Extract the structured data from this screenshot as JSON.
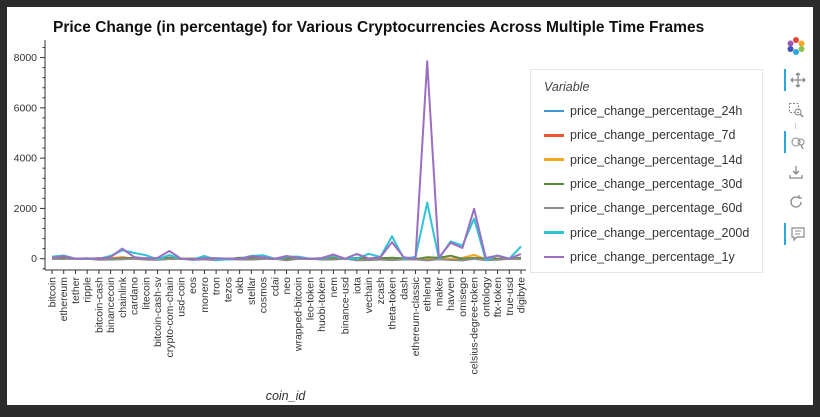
{
  "chart_data": {
    "type": "line",
    "title": "Price Change (in percentage) for Various Cryptocurrencies Across Multiple Time Frames",
    "xlabel": "coin_id",
    "ylabel": "",
    "ylim": [
      -450,
      8700
    ],
    "yticks": [
      0,
      2000,
      4000,
      6000,
      8000
    ],
    "grid": false,
    "legend_title": "Variable",
    "legend_position": "right",
    "categories": [
      "bitcoin",
      "ethereum",
      "tether",
      "ripple",
      "bitcoin-cash",
      "binancecoin",
      "chainlink",
      "cardano",
      "litecoin",
      "bitcoin-cash-sv",
      "crypto-com-chain",
      "usd-coin",
      "eos",
      "monero",
      "tron",
      "tezos",
      "okb",
      "stellar",
      "cosmos",
      "cdai",
      "neo",
      "wrapped-bitcoin",
      "leo-token",
      "huobi-token",
      "nem",
      "binance-usd",
      "iota",
      "vechain",
      "zcash",
      "theta-token",
      "dash",
      "ethereum-classic",
      "ethlend",
      "maker",
      "havven",
      "omisego",
      "celsius-degree-token",
      "ontology",
      "ftx-token",
      "true-usd",
      "digibyte"
    ],
    "series": [
      {
        "name": "price_change_percentage_24h",
        "color": "#3a9ad9",
        "values": [
          1.1,
          0.8,
          0,
          -0.2,
          2.2,
          2.6,
          4.5,
          -0.2,
          1.5,
          -0.1,
          1.5,
          0,
          1.0,
          1.3,
          -0.5,
          0,
          0.8,
          -2.7,
          1.5,
          0,
          0.6,
          1.5,
          0,
          0.8,
          3.1,
          -0.1,
          0.7,
          0,
          2.4,
          -0.1,
          -0.3,
          -1.1,
          -0.3,
          -0.1,
          0.7,
          1.0,
          1.4,
          1.1,
          -0.3,
          0,
          2.8
        ]
      },
      {
        "name": "price_change_percentage_7d",
        "color": "#ee5533",
        "values": [
          7.5,
          12.4,
          0,
          -5,
          24.3,
          13.8,
          52,
          7.6,
          12,
          6.4,
          36.3,
          0,
          -6,
          13.8,
          7.2,
          1.3,
          17.4,
          2,
          12,
          0,
          -0.6,
          5.9,
          0,
          0.3,
          17.8,
          -0.1,
          -6,
          3.7,
          17.4,
          6.5,
          15.7,
          7.3,
          1.4,
          7.3,
          -4.7,
          -18.9,
          18.8,
          10,
          4.1,
          0,
          4.8
        ]
      },
      {
        "name": "price_change_percentage_14d",
        "color": "#f5a623",
        "values": [
          6.6,
          19.2,
          0,
          -3.3,
          -9.9,
          5.1,
          22.1,
          -1.8,
          9.4,
          -3.1,
          3.4,
          0,
          -2,
          8,
          -2.7,
          5.2,
          6.3,
          -3.3,
          22.3,
          0,
          5.8,
          7.7,
          0,
          4.6,
          40.8,
          0,
          4.1,
          0.4,
          36.6,
          17.3,
          -5.2,
          -6.5,
          24.5,
          -12.2,
          -0.1,
          31.4,
          149,
          -21.5,
          7.8,
          0,
          -5.1
        ]
      },
      {
        "name": "price_change_percentage_30d",
        "color": "#5a8a3c",
        "values": [
          7.5,
          33.3,
          0,
          3.3,
          -4,
          -16.9,
          17.5,
          26.6,
          18,
          -22,
          34.2,
          0,
          -2.9,
          19.2,
          20,
          -15,
          37,
          29.6,
          3.6,
          0,
          15.9,
          7.9,
          0,
          2.1,
          21.8,
          0,
          29.4,
          4.9,
          12.6,
          40.7,
          8.2,
          -19.7,
          59.3,
          40.1,
          119.3,
          -3.7,
          31.4,
          -4.9,
          1.1,
          0,
          35.9
        ]
      },
      {
        "name": "price_change_percentage_60d",
        "color": "#8c8c8c",
        "values": [
          -8.7,
          -12.8,
          0,
          -3.8,
          -42.3,
          -34.9,
          -20.4,
          -5.1,
          -35.9,
          -48.3,
          -12.3,
          0,
          -49.8,
          -26.5,
          -62.8,
          -20.6,
          -33.3,
          -37.9,
          -11.2,
          0,
          -60.6,
          -9.6,
          -0.3,
          -35.1,
          -32.8,
          0,
          -61.4,
          -54.6,
          -38.1,
          -57.4,
          -34.1,
          -27.1,
          -69,
          -20.1,
          -50.5,
          -67,
          -6.7,
          -54.3,
          -38.4,
          -0.1,
          -17.3
        ]
      },
      {
        "name": "price_change_percentage_200d",
        "color": "#2ec4d6",
        "values": [
          84.3,
          127.5,
          0,
          -5.4,
          1,
          110,
          335.5,
          232,
          137.3,
          -23.9,
          141,
          0,
          -33,
          112,
          -42,
          -26.4,
          1.2,
          109,
          137,
          0,
          70.6,
          83.6,
          0,
          13.3,
          119.6,
          0,
          5.6,
          196,
          68,
          896,
          0,
          71,
          2229,
          2.6,
          689,
          522,
          1589,
          -59.8,
          127,
          0,
          483
        ]
      },
      {
        "name": "price_change_percentage_1y",
        "color": "#9b6ec2",
        "values": [
          37.5,
          101.2,
          0,
          15,
          0.7,
          63.8,
          401.1,
          65,
          11.3,
          28.8,
          306,
          0,
          -34,
          18,
          18,
          8,
          -13,
          96,
          59,
          -2,
          105,
          36.3,
          -9,
          29,
          168,
          0,
          192,
          11.7,
          53,
          654,
          59,
          -1,
          7852.1,
          43,
          638,
          427,
          1983,
          29,
          124,
          0,
          187
        ]
      }
    ]
  },
  "toolbar": {
    "icons": [
      "bokeh-logo-icon",
      "pan-icon",
      "box-zoom-icon",
      "wheel-zoom-icon",
      "save-icon",
      "reset-icon",
      "hover-icon"
    ]
  }
}
